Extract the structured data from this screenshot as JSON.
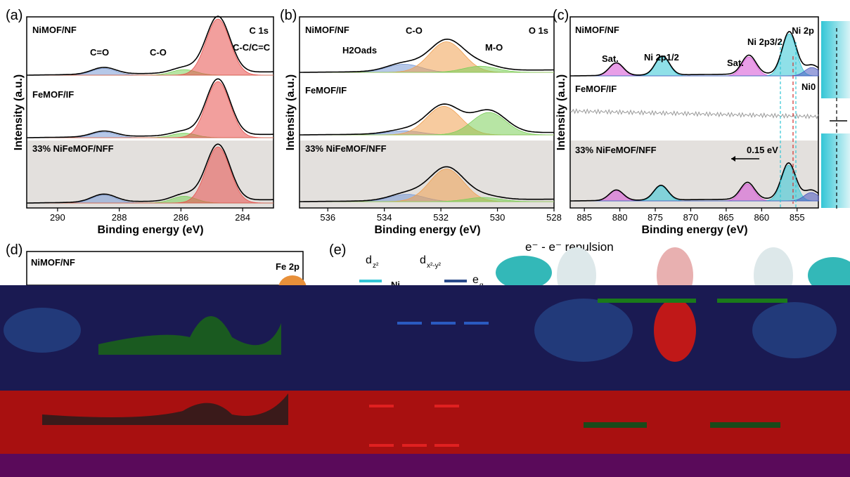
{
  "colors": {
    "carbon_CC": "#e8504c",
    "carbon_CO": "#7ccf5a",
    "carbon_CdO": "#7a9ad6",
    "oxygen_CO": "#f0a050",
    "oxygen_H2O": "#7a9ad6",
    "oxygen_MO": "#7ccf5a",
    "ni_sat": "#d64fd4",
    "ni_peak": "#33c6d6",
    "ni_metal": "#4a57c0",
    "dark_band": "#1a1a52",
    "red_band": "#b01010",
    "purple_band": "#5a0a5a"
  },
  "figure": {
    "panel_a_letter": "(a)",
    "panel_b_letter": "(b)",
    "panel_c_letter": "(c)",
    "panel_d_letter": "(d)",
    "panel_e_letter": "(e)"
  },
  "panel_d": {
    "sample_top": "NiMOF/NF",
    "element": "Fe 2p"
  },
  "panel_e": {
    "repulsion": "e⁻ - e⁻ repulsion",
    "dz2": "d",
    "dz2_sub": "z²",
    "dx2y2": "d",
    "dx2y2_sub": "x²-y²",
    "eg": "e",
    "eg_sub": "g",
    "ni_label": "Ni"
  },
  "chart_data": [
    {
      "type": "line",
      "panel": "a",
      "title": "C 1s",
      "xlabel": "Binding energy (eV)",
      "ylabel": "Intensity (a.u.)",
      "xlim": [
        291,
        283
      ],
      "xticks": [
        290,
        288,
        286,
        284
      ],
      "x_reversed": true,
      "samples": [
        {
          "name": "NiMOF/NF",
          "peaks": [
            {
              "label": "C=O",
              "center": 288.5,
              "height": 0.12
            },
            {
              "label": "C-O",
              "center": 285.9,
              "height": 0.1
            },
            {
              "label": "C-C/C=C",
              "center": 284.8,
              "height": 1.0
            }
          ]
        },
        {
          "name": "FeMOF/IF",
          "peaks": [
            {
              "center": 288.5,
              "height": 0.1
            },
            {
              "center": 285.9,
              "height": 0.08
            },
            {
              "center": 284.8,
              "height": 1.0
            }
          ]
        },
        {
          "name": "33% NiFeMOF/NFF",
          "peaks": [
            {
              "center": 288.5,
              "height": 0.14
            },
            {
              "center": 285.9,
              "height": 0.12
            },
            {
              "center": 284.8,
              "height": 1.0
            }
          ]
        }
      ],
      "annotations": [
        "C=O",
        "C-O",
        "C-C/C=C"
      ]
    },
    {
      "type": "line",
      "panel": "b",
      "title": "O 1s",
      "xlabel": "Binding energy (eV)",
      "ylabel": "Intensity (a.u.)",
      "xlim": [
        537,
        528
      ],
      "xticks": [
        536,
        534,
        532,
        530,
        528
      ],
      "x_reversed": true,
      "samples": [
        {
          "name": "NiMOF/NF",
          "peaks": [
            {
              "label": "H2Oads",
              "center": 533.3,
              "height": 0.2
            },
            {
              "label": "C-O",
              "center": 531.8,
              "height": 0.75
            },
            {
              "label": "M-O",
              "center": 530.6,
              "height": 0.15
            }
          ]
        },
        {
          "name": "FeMOF/IF",
          "peaks": [
            {
              "center": 533.3,
              "height": 0.1
            },
            {
              "center": 531.9,
              "height": 0.7
            },
            {
              "center": 530.3,
              "height": 0.55
            }
          ]
        },
        {
          "name": "33% NiFeMOF/NFF",
          "peaks": [
            {
              "center": 533.2,
              "height": 0.18
            },
            {
              "center": 531.8,
              "height": 0.8
            },
            {
              "center": 530.5,
              "height": 0.1
            }
          ]
        }
      ],
      "annotations": [
        "H2Oads",
        "C-O",
        "M-O"
      ]
    },
    {
      "type": "line",
      "panel": "c",
      "title": "Ni 2p",
      "xlabel": "Binding energy (eV)",
      "ylabel": "Intensity (a.u.)",
      "xlim": [
        887,
        852
      ],
      "xticks": [
        885,
        880,
        875,
        870,
        865,
        860,
        855
      ],
      "x_reversed": true,
      "samples": [
        {
          "name": "NiMOF/NF",
          "peaks": [
            {
              "label": "Sat.",
              "center": 880.5,
              "height": 0.3
            },
            {
              "label": "Ni 2p1/2",
              "center": 874.0,
              "height": 0.45
            },
            {
              "label": "Sat.",
              "center": 861.8,
              "height": 0.45
            },
            {
              "label": "Ni 2p3/2",
              "center": 856.1,
              "height": 1.0
            },
            {
              "label": "Ni0",
              "center": 852.9,
              "height": 0.2
            }
          ]
        },
        {
          "name": "FeMOF/IF",
          "peaks": []
        },
        {
          "name": "33% NiFeMOF/NFF",
          "peaks": [
            {
              "center": 880.5,
              "height": 0.25
            },
            {
              "center": 874.2,
              "height": 0.35
            },
            {
              "center": 862.0,
              "height": 0.4
            },
            {
              "center": 856.2,
              "height": 0.85
            },
            {
              "center": 853.0,
              "height": 0.2
            }
          ]
        }
      ],
      "annotations": [
        "Sat.",
        "Ni 2p1/2",
        "Sat.",
        "Ni 2p3/2",
        "Ni0",
        "0.15 eV"
      ]
    }
  ]
}
